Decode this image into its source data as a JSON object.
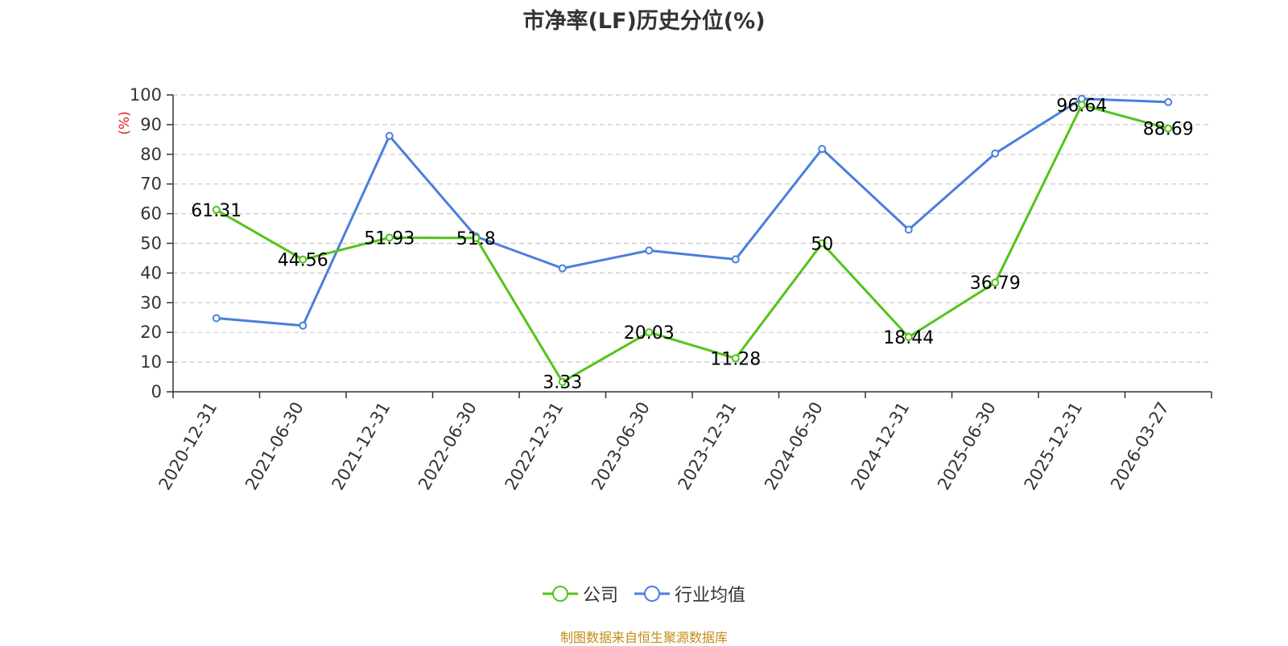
{
  "chart_data": {
    "type": "line",
    "title": "市净率(LF)历史分位(%)",
    "ylabel": "(%)",
    "ylim": [
      0,
      100
    ],
    "yticks": [
      0,
      10,
      20,
      30,
      40,
      50,
      60,
      70,
      80,
      90,
      100
    ],
    "categories": [
      "2020-12-31",
      "2021-06-30",
      "2021-12-31",
      "2022-06-30",
      "2022-12-31",
      "2023-06-30",
      "2023-12-31",
      "2024-06-30",
      "2024-12-31",
      "2025-06-30",
      "2025-12-31",
      "2026-03-27"
    ],
    "series": [
      {
        "name": "公司",
        "color": "#52c41a",
        "values": [
          61.31,
          44.56,
          51.93,
          51.8,
          3.33,
          20.03,
          11.28,
          50,
          18.44,
          36.79,
          96.64,
          88.69
        ],
        "labels": [
          "61.31",
          "44.56",
          "51.93",
          "51.8",
          "3.33",
          "20.03",
          "11.28",
          "50",
          "18.44",
          "36.79",
          "96.64",
          "88.69"
        ]
      },
      {
        "name": "行业均值",
        "color": "#4a7fdc",
        "values": [
          24.8,
          22.3,
          86.2,
          52.3,
          41.6,
          47.6,
          44.6,
          81.8,
          54.6,
          80.3,
          98.7,
          97.6
        ]
      }
    ],
    "grid": "horizontal-dashed",
    "legend_position": "bottom-center"
  },
  "legend": {
    "company": "公司",
    "industry": "行业均值"
  },
  "source": "制图数据来自恒生聚源数据库",
  "colors": {
    "company": "#52c41a",
    "industry": "#4a7fdc",
    "ylabel": "#e02020",
    "source": "#c58b15"
  }
}
